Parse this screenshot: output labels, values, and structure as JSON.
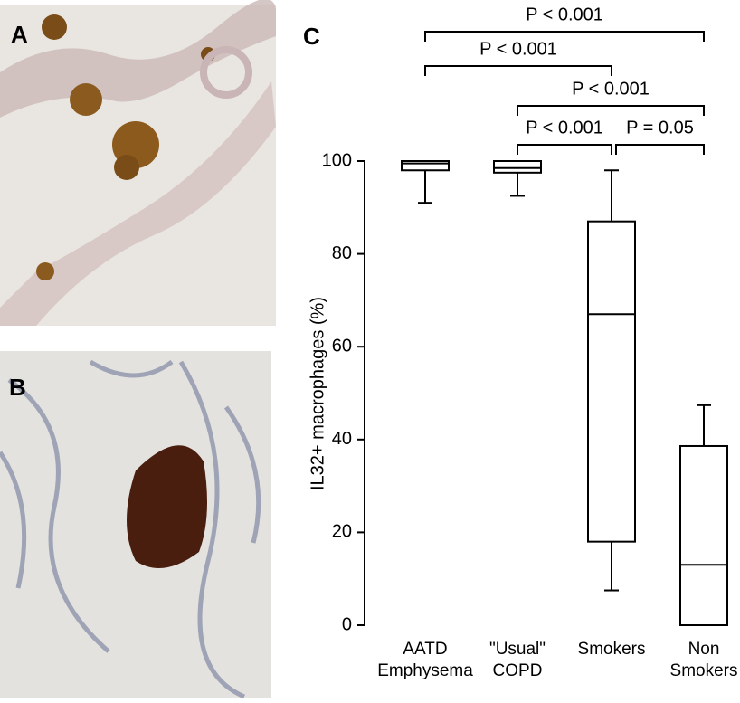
{
  "panel_labels": [
    "A",
    "B"
  ],
  "chart_data": {
    "type": "box",
    "panel_label": "C",
    "y_label": "IL32+ macrophages (%)",
    "categories": [
      "AATD\nEmphysema",
      "\"Usual\"\nCOPD",
      "Smokers",
      "Non\nSmokers"
    ],
    "boxes": [
      {
        "min": 91,
        "q1": 98,
        "median": 99.5,
        "q3": 100,
        "max": 100
      },
      {
        "min": 92.5,
        "q1": 97.5,
        "median": 98.5,
        "q3": 100,
        "max": 100
      },
      {
        "min": 7.5,
        "q1": 18,
        "median": 67,
        "q3": 87,
        "max": 98
      },
      {
        "min": 0,
        "q1": 0,
        "median": 13,
        "q3": 38.6,
        "max": 47.4
      }
    ],
    "ylim": [
      0,
      100
    ],
    "yticks": [
      0,
      20,
      40,
      60,
      80,
      100
    ],
    "annotations": [
      "P < 0.001",
      "P < 0.001",
      "P < 0.001",
      "P < 0.001",
      "P = 0.05"
    ]
  }
}
